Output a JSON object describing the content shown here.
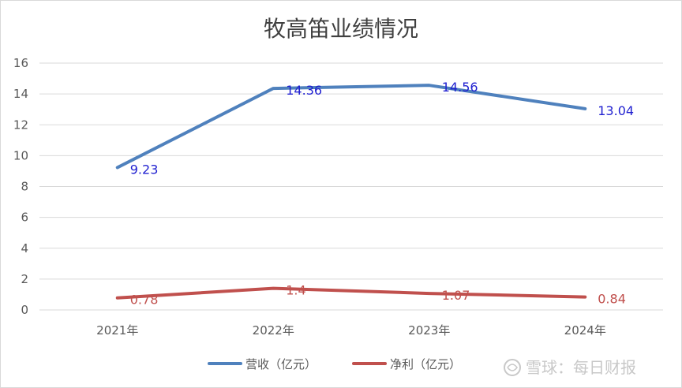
{
  "chart_data": {
    "type": "line",
    "title": "牧高笛业绩情况",
    "xlabel": "",
    "ylabel": "",
    "categories": [
      "2021年",
      "2022年",
      "2023年",
      "2024年"
    ],
    "ylim": [
      0,
      16
    ],
    "yticks": [
      0,
      2,
      4,
      6,
      8,
      10,
      12,
      14,
      16
    ],
    "grid": true,
    "legend_position": "bottom",
    "series": [
      {
        "name": "营收（亿元）",
        "values": [
          9.23,
          14.36,
          14.56,
          13.04
        ],
        "labels": [
          "9.23",
          "14.36",
          "14.56",
          "13.04"
        ],
        "color": "#4f81bd",
        "label_color": "#1f1fd0"
      },
      {
        "name": "净利（亿元）",
        "values": [
          0.78,
          1.4,
          1.07,
          0.84
        ],
        "labels": [
          "0.78",
          "1.4",
          "1.07",
          "0.84"
        ],
        "color": "#c0504d",
        "label_color": "#c0504d"
      }
    ]
  },
  "watermark": {
    "text": "雪球：每日财报"
  }
}
